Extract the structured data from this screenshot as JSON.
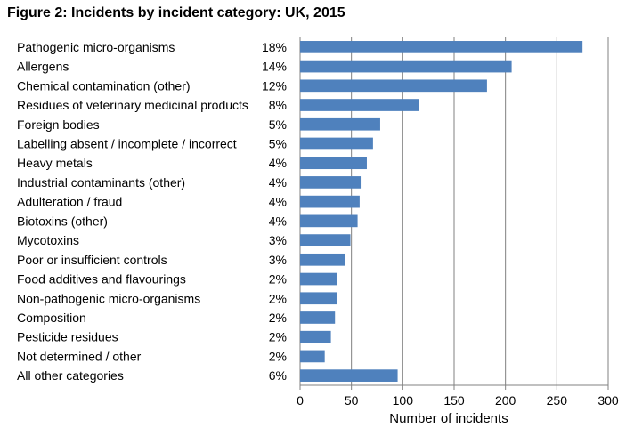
{
  "title": "Figure 2: Incidents by incident category: UK, 2015",
  "chart_data": {
    "type": "bar",
    "orientation": "horizontal",
    "title": "Figure 2: Incidents by incident category: UK, 2015",
    "xlabel": "Number of incidents",
    "ylabel": "",
    "xlim": [
      0,
      300
    ],
    "xticks": [
      0,
      50,
      100,
      150,
      200,
      250,
      300
    ],
    "grid": true,
    "bar_color": "#4f81bd",
    "categories": [
      "Pathogenic micro-organisms",
      "Allergens",
      "Chemical contamination (other)",
      "Residues of veterinary medicinal products",
      "Foreign bodies",
      "Labelling absent / incomplete / incorrect",
      "Heavy metals",
      "Industrial contaminants (other)",
      "Adulteration / fraud",
      "Biotoxins (other)",
      "Mycotoxins",
      "Poor or insufficient controls",
      "Food additives and flavourings",
      "Non-pathogenic micro-organisms",
      "Composition",
      "Pesticide residues",
      "Not determined / other",
      "All other categories"
    ],
    "percentages": [
      "18%",
      "14%",
      "12%",
      "8%",
      "5%",
      "5%",
      "4%",
      "4%",
      "4%",
      "4%",
      "3%",
      "3%",
      "2%",
      "2%",
      "2%",
      "2%",
      "2%",
      "6%"
    ],
    "values": [
      275,
      206,
      182,
      116,
      78,
      71,
      65,
      59,
      58,
      56,
      49,
      44,
      36,
      36,
      34,
      30,
      24,
      95
    ]
  }
}
